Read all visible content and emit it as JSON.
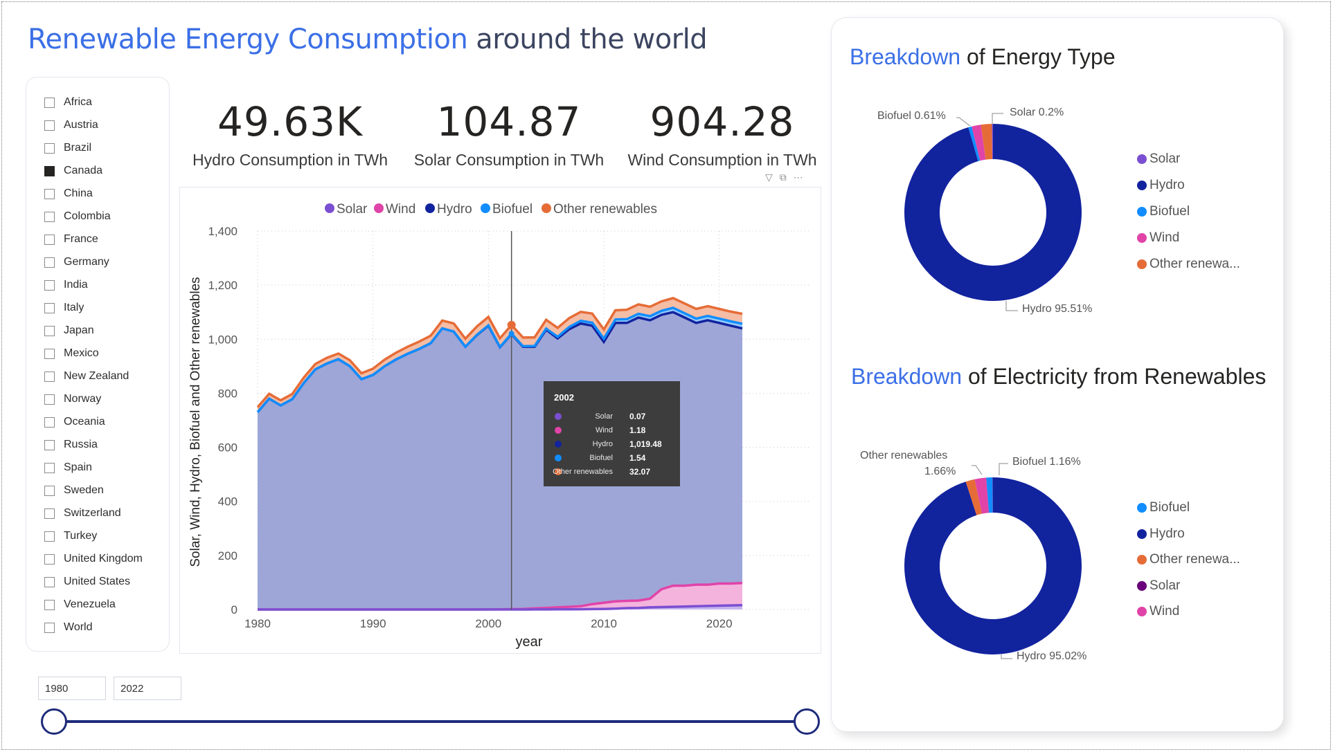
{
  "title": {
    "accent": "Renewable Energy Consumption",
    "rest": "around the world"
  },
  "slicer": {
    "items": [
      {
        "label": "Africa",
        "checked": false
      },
      {
        "label": "Austria",
        "checked": false
      },
      {
        "label": "Brazil",
        "checked": false
      },
      {
        "label": "Canada",
        "checked": true
      },
      {
        "label": "China",
        "checked": false
      },
      {
        "label": "Colombia",
        "checked": false
      },
      {
        "label": "France",
        "checked": false
      },
      {
        "label": "Germany",
        "checked": false
      },
      {
        "label": "India",
        "checked": false
      },
      {
        "label": "Italy",
        "checked": false
      },
      {
        "label": "Japan",
        "checked": false
      },
      {
        "label": "Mexico",
        "checked": false
      },
      {
        "label": "New Zealand",
        "checked": false
      },
      {
        "label": "Norway",
        "checked": false
      },
      {
        "label": "Oceania",
        "checked": false
      },
      {
        "label": "Russia",
        "checked": false
      },
      {
        "label": "Spain",
        "checked": false
      },
      {
        "label": "Sweden",
        "checked": false
      },
      {
        "label": "Switzerland",
        "checked": false
      },
      {
        "label": "Turkey",
        "checked": false
      },
      {
        "label": "United Kingdom",
        "checked": false
      },
      {
        "label": "United States",
        "checked": false
      },
      {
        "label": "Venezuela",
        "checked": false
      },
      {
        "label": "World",
        "checked": false
      }
    ]
  },
  "kpis": [
    {
      "value": "49.63K",
      "label": "Hydro Consumption in TWh"
    },
    {
      "value": "104.87",
      "label": "Solar Consumption in TWh"
    },
    {
      "value": "904.28",
      "label": "Wind Consumption in TWh"
    }
  ],
  "visual_header_icons": [
    "filter-icon",
    "focus-mode-icon",
    "more-options-icon"
  ],
  "colors": {
    "solar": "#7b4fd1",
    "wind": "#e044a8",
    "hydro": "#12239e",
    "biofuel": "#118dff",
    "other": "#e66c37",
    "solar_pie2": "#6b007b",
    "accent": "#3b6fe6"
  },
  "chart_data": {
    "type": "area",
    "title": "",
    "legend": [
      "Solar",
      "Wind",
      "Hydro",
      "Biofuel",
      "Other renewables"
    ],
    "legend_position": "top-center",
    "xlabel": "year",
    "ylabel": "Solar, Wind, Hydro, Biofuel and Other renewables",
    "xlim": [
      1980,
      2022
    ],
    "ylim": [
      0,
      1400
    ],
    "x_ticks": [
      "1980",
      "1990",
      "2000",
      "2010",
      "2020"
    ],
    "y_ticks": [
      "0",
      "200",
      "400",
      "600",
      "800",
      "1,000",
      "1,200",
      "1,400"
    ],
    "grid": true,
    "x": [
      1980,
      1981,
      1982,
      1983,
      1984,
      1985,
      1986,
      1987,
      1988,
      1989,
      1990,
      1991,
      1992,
      1993,
      1994,
      1995,
      1996,
      1997,
      1998,
      1999,
      2000,
      2001,
      2002,
      2003,
      2004,
      2005,
      2006,
      2007,
      2008,
      2009,
      2010,
      2011,
      2012,
      2013,
      2014,
      2015,
      2016,
      2017,
      2018,
      2019,
      2020,
      2021,
      2022
    ],
    "series": [
      {
        "name": "Hydro",
        "values": [
          730,
          780,
          755,
          778,
          838,
          888,
          910,
          926,
          900,
          852,
          868,
          900,
          925,
          946,
          964,
          985,
          1040,
          1028,
          972,
          1015,
          1050,
          970,
          1019,
          972,
          972,
          1035,
          1003,
          1037,
          1058,
          1050,
          990,
          1060,
          1060,
          1080,
          1070,
          1090,
          1100,
          1080,
          1060,
          1070,
          1060,
          1050,
          1040
        ]
      },
      {
        "name": "Wind",
        "values": [
          0,
          0,
          0,
          0,
          0,
          0,
          0,
          0,
          0,
          0,
          0,
          0,
          0,
          0,
          0,
          0,
          0,
          0,
          0,
          0,
          0.2,
          0.5,
          1.18,
          2,
          4,
          6,
          8,
          10,
          12,
          20,
          25,
          30,
          32,
          33,
          40,
          75,
          88,
          88,
          92,
          92,
          96,
          96,
          98
        ]
      },
      {
        "name": "Solar",
        "values": [
          0,
          0,
          0,
          0,
          0,
          0,
          0,
          0,
          0,
          0,
          0,
          0,
          0,
          0,
          0,
          0,
          0,
          0,
          0,
          0,
          0,
          0,
          0.07,
          0.1,
          0.2,
          0.3,
          0.5,
          0.8,
          1,
          1.5,
          2,
          3,
          5,
          6,
          8,
          9,
          10,
          11,
          12,
          13,
          14,
          15,
          16
        ]
      },
      {
        "name": "Biofuel",
        "values": [
          0,
          0,
          0,
          0,
          0,
          0,
          0,
          0,
          0,
          0,
          0,
          0,
          0,
          0,
          0,
          0,
          0,
          0,
          0,
          1,
          1.3,
          1.4,
          1.54,
          2,
          3,
          4,
          6,
          8,
          10,
          11,
          12,
          13,
          14,
          14,
          15,
          15,
          16,
          16,
          16,
          16,
          16,
          16,
          17
        ]
      },
      {
        "name": "Other renewables",
        "values": [
          18,
          18,
          19,
          19,
          20,
          20,
          21,
          21,
          22,
          22,
          23,
          24,
          25,
          26,
          27,
          28,
          29,
          30,
          30,
          31,
          31,
          32,
          32.07,
          32,
          32,
          33,
          33,
          33,
          33,
          34,
          34,
          34,
          35,
          35,
          35,
          35,
          36,
          36,
          36,
          36,
          36,
          36,
          37
        ]
      }
    ],
    "tooltip": {
      "title": "2002",
      "rows": [
        {
          "label": "Solar",
          "value": "0.07"
        },
        {
          "label": "Wind",
          "value": "1.18"
        },
        {
          "label": "Hydro",
          "value": "1,019.48"
        },
        {
          "label": "Biofuel",
          "value": "1.54"
        },
        {
          "label": "Other renewables",
          "value": "32.07"
        }
      ]
    }
  },
  "date_range": {
    "start": "1980",
    "end": "2022",
    "start_fraction": 0.0,
    "end_fraction": 1.0
  },
  "breakdown_energy": {
    "title_accent": "Breakdown",
    "title_rest": "of Energy Type",
    "chart_data": {
      "type": "pie",
      "slices": [
        {
          "name": "Hydro",
          "value": 95.51
        },
        {
          "name": "Biofuel",
          "value": 0.61
        },
        {
          "name": "Wind",
          "value": 1.7
        },
        {
          "name": "Other renewables",
          "value": 1.98
        },
        {
          "name": "Solar",
          "value": 0.2
        }
      ],
      "data_labels": [
        "Biofuel 0.61%",
        "Solar 0.2%",
        "Hydro 95.51%"
      ],
      "legend": [
        "Solar",
        "Hydro",
        "Biofuel",
        "Wind",
        "Other renewa..."
      ]
    }
  },
  "breakdown_electricity": {
    "title_accent": "Breakdown",
    "title_rest": "of Electricity from Renewables",
    "chart_data": {
      "type": "pie",
      "slices": [
        {
          "name": "Hydro",
          "value": 95.02
        },
        {
          "name": "Other renewables",
          "value": 1.66
        },
        {
          "name": "Wind",
          "value": 2.1
        },
        {
          "name": "Biofuel",
          "value": 1.16
        },
        {
          "name": "Solar",
          "value": 0.06
        }
      ],
      "data_labels": [
        "Other renewables",
        "1.66%",
        "Biofuel 1.16%",
        "Hydro 95.02%"
      ],
      "legend": [
        "Biofuel",
        "Hydro",
        "Other renewa...",
        "Solar",
        "Wind"
      ]
    }
  }
}
